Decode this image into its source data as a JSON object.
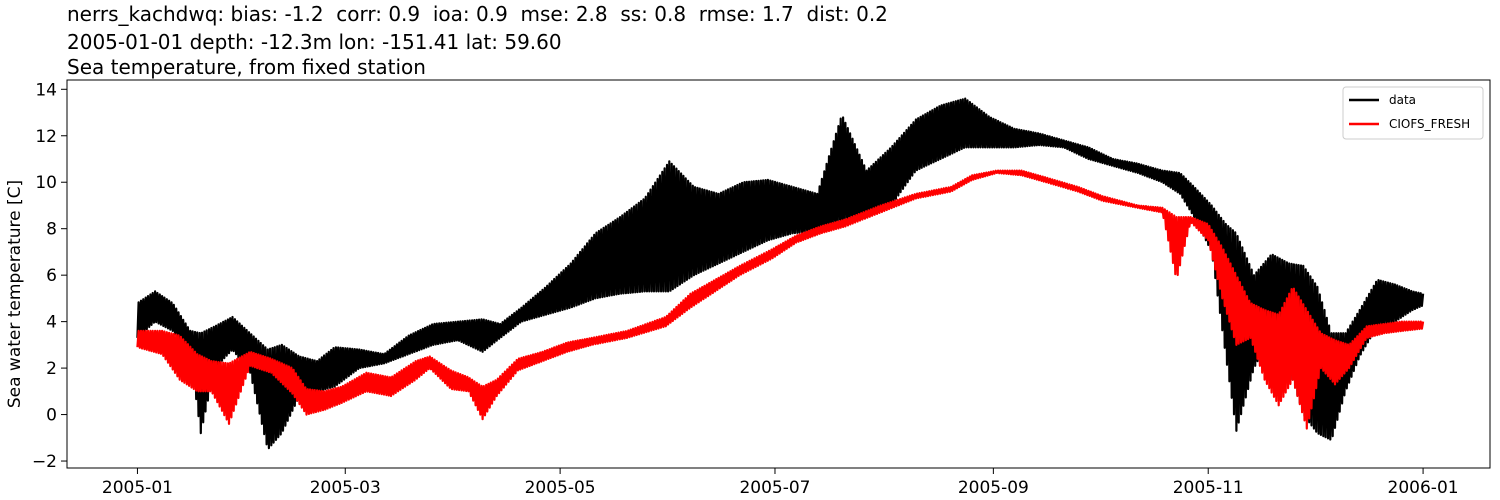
{
  "chart_data": {
    "type": "line",
    "title_lines": [
      "nerrs_kachdwq: bias: -1.2  corr: 0.9  ioa: 0.9  mse: 2.8  ss: 0.8  rmse: 1.7  dist: 0.2",
      "2005-01-01 depth: -12.3m lon: -151.41 lat: 59.60",
      "Sea temperature, from fixed station"
    ],
    "xlabel": "",
    "ylabel": "Sea water temperature [C]",
    "x_ticks": [
      "2005-01",
      "2005-03",
      "2005-05",
      "2005-07",
      "2005-09",
      "2005-11",
      "2006-01"
    ],
    "y_ticks": [
      "−2",
      "0",
      "2",
      "4",
      "6",
      "8",
      "10",
      "12",
      "14"
    ],
    "ylim": [
      -2.3,
      14.4
    ],
    "xlim": [
      "2004-12-12",
      "2006-01-20"
    ],
    "legend_position": "upper right",
    "grid": false,
    "series": [
      {
        "name": "data",
        "color": "#000000",
        "points": [
          [
            "2005-01-01",
            3.3,
            4.8
          ],
          [
            "2005-01-06",
            4.0,
            5.3
          ],
          [
            "2005-01-11",
            3.6,
            4.8
          ],
          [
            "2005-01-16",
            2.5,
            3.6
          ],
          [
            "2005-01-19",
            -0.8,
            3.5
          ],
          [
            "2005-01-23",
            2.0,
            3.8
          ],
          [
            "2005-01-28",
            2.8,
            4.2
          ],
          [
            "2005-02-02",
            1.8,
            3.5
          ],
          [
            "2005-02-07",
            -1.5,
            2.8
          ],
          [
            "2005-02-11",
            -0.8,
            3.0
          ],
          [
            "2005-02-16",
            0.8,
            2.5
          ],
          [
            "2005-02-21",
            1.0,
            2.3
          ],
          [
            "2005-02-26",
            1.2,
            2.9
          ],
          [
            "2005-03-05",
            2.0,
            2.8
          ],
          [
            "2005-03-12",
            2.2,
            2.6
          ],
          [
            "2005-03-19",
            2.6,
            3.4
          ],
          [
            "2005-03-26",
            3.0,
            3.9
          ],
          [
            "2005-04-02",
            3.2,
            4.0
          ],
          [
            "2005-04-09",
            2.7,
            4.1
          ],
          [
            "2005-04-14",
            3.3,
            3.9
          ],
          [
            "2005-04-20",
            4.0,
            4.6
          ],
          [
            "2005-04-27",
            4.3,
            5.5
          ],
          [
            "2005-05-04",
            4.6,
            6.5
          ],
          [
            "2005-05-11",
            5.0,
            7.8
          ],
          [
            "2005-05-18",
            5.2,
            8.5
          ],
          [
            "2005-05-25",
            5.3,
            9.3
          ],
          [
            "2005-06-01",
            5.3,
            10.9
          ],
          [
            "2005-06-08",
            6.0,
            9.8
          ],
          [
            "2005-06-15",
            6.5,
            9.5
          ],
          [
            "2005-06-22",
            7.0,
            10.0
          ],
          [
            "2005-06-29",
            7.5,
            10.1
          ],
          [
            "2005-07-06",
            7.8,
            9.8
          ],
          [
            "2005-07-13",
            7.9,
            9.5
          ],
          [
            "2005-07-20",
            8.2,
            12.9
          ],
          [
            "2005-07-27",
            8.5,
            10.5
          ],
          [
            "2005-08-03",
            9.0,
            11.5
          ],
          [
            "2005-08-10",
            10.5,
            12.7
          ],
          [
            "2005-08-17",
            11.0,
            13.3
          ],
          [
            "2005-08-24",
            11.5,
            13.6
          ],
          [
            "2005-08-31",
            11.5,
            12.8
          ],
          [
            "2005-09-07",
            11.5,
            12.3
          ],
          [
            "2005-09-14",
            11.6,
            12.1
          ],
          [
            "2005-09-21",
            11.5,
            11.8
          ],
          [
            "2005-09-28",
            11.0,
            11.5
          ],
          [
            "2005-10-05",
            10.7,
            11.0
          ],
          [
            "2005-10-12",
            10.4,
            10.8
          ],
          [
            "2005-10-19",
            10.0,
            10.5
          ],
          [
            "2005-10-24",
            9.5,
            10.4
          ],
          [
            "2005-10-28",
            8.5,
            9.8
          ],
          [
            "2005-11-02",
            7.0,
            9.0
          ],
          [
            "2005-11-06",
            2.5,
            8.2
          ],
          [
            "2005-11-09",
            -0.7,
            7.8
          ],
          [
            "2005-11-14",
            2.0,
            6.0
          ],
          [
            "2005-11-19",
            3.5,
            6.9
          ],
          [
            "2005-11-24",
            2.0,
            6.5
          ],
          [
            "2005-11-28",
            0.0,
            6.4
          ],
          [
            "2005-12-02",
            -0.8,
            5.5
          ],
          [
            "2005-12-06",
            -1.1,
            3.5
          ],
          [
            "2005-12-10",
            1.0,
            3.5
          ],
          [
            "2005-12-14",
            2.5,
            4.5
          ],
          [
            "2005-12-19",
            3.8,
            5.8
          ],
          [
            "2005-12-24",
            4.0,
            5.6
          ],
          [
            "2005-12-29",
            4.5,
            5.3
          ],
          [
            "2006-01-01",
            4.7,
            5.2
          ]
        ]
      },
      {
        "name": "CIOFS_FRESH",
        "color": "#ff0000",
        "points": [
          [
            "2005-01-01",
            2.9,
            3.6
          ],
          [
            "2005-01-08",
            2.6,
            3.6
          ],
          [
            "2005-01-13",
            1.5,
            3.4
          ],
          [
            "2005-01-18",
            1.0,
            2.6
          ],
          [
            "2005-01-22",
            1.0,
            2.3
          ],
          [
            "2005-01-27",
            -0.4,
            2.2
          ],
          [
            "2005-02-02",
            2.1,
            2.7
          ],
          [
            "2005-02-08",
            1.8,
            2.4
          ],
          [
            "2005-02-14",
            0.9,
            2.0
          ],
          [
            "2005-02-18",
            0.0,
            1.1
          ],
          [
            "2005-02-23",
            0.2,
            1.0
          ],
          [
            "2005-02-28",
            0.5,
            1.2
          ],
          [
            "2005-03-07",
            1.0,
            1.8
          ],
          [
            "2005-03-14",
            0.8,
            1.6
          ],
          [
            "2005-03-21",
            1.5,
            2.3
          ],
          [
            "2005-03-25",
            2.0,
            2.5
          ],
          [
            "2005-03-31",
            1.1,
            1.9
          ],
          [
            "2005-04-05",
            1.0,
            1.6
          ],
          [
            "2005-04-09",
            -0.2,
            1.2
          ],
          [
            "2005-04-13",
            0.8,
            1.5
          ],
          [
            "2005-04-19",
            1.9,
            2.4
          ],
          [
            "2005-04-26",
            2.3,
            2.7
          ],
          [
            "2005-05-03",
            2.7,
            3.1
          ],
          [
            "2005-05-10",
            3.0,
            3.3
          ],
          [
            "2005-05-20",
            3.3,
            3.6
          ],
          [
            "2005-05-31",
            3.8,
            4.2
          ],
          [
            "2005-06-07",
            4.6,
            5.2
          ],
          [
            "2005-06-14",
            5.3,
            5.8
          ],
          [
            "2005-06-21",
            6.0,
            6.4
          ],
          [
            "2005-06-30",
            6.7,
            7.1
          ],
          [
            "2005-07-07",
            7.4,
            7.7
          ],
          [
            "2005-07-14",
            7.8,
            8.1
          ],
          [
            "2005-07-21",
            8.1,
            8.4
          ],
          [
            "2005-07-31",
            8.7,
            9.0
          ],
          [
            "2005-08-10",
            9.3,
            9.5
          ],
          [
            "2005-08-20",
            9.6,
            9.8
          ],
          [
            "2005-08-26",
            10.1,
            10.3
          ],
          [
            "2005-09-02",
            10.4,
            10.5
          ],
          [
            "2005-09-09",
            10.3,
            10.5
          ],
          [
            "2005-09-16",
            10.0,
            10.2
          ],
          [
            "2005-09-25",
            9.6,
            9.8
          ],
          [
            "2005-10-02",
            9.2,
            9.4
          ],
          [
            "2005-10-12",
            8.9,
            9.0
          ],
          [
            "2005-10-19",
            8.7,
            8.9
          ],
          [
            "2005-10-23",
            5.8,
            8.5
          ],
          [
            "2005-10-27",
            8.3,
            8.5
          ],
          [
            "2005-11-01",
            7.5,
            8.2
          ],
          [
            "2005-11-05",
            5.0,
            7.2
          ],
          [
            "2005-11-09",
            3.0,
            6.0
          ],
          [
            "2005-11-13",
            3.3,
            4.8
          ],
          [
            "2005-11-17",
            1.5,
            4.5
          ],
          [
            "2005-11-21",
            0.4,
            4.3
          ],
          [
            "2005-11-25",
            1.5,
            5.5
          ],
          [
            "2005-11-29",
            -0.6,
            4.5
          ],
          [
            "2005-12-03",
            2.0,
            3.5
          ],
          [
            "2005-12-07",
            1.3,
            3.2
          ],
          [
            "2005-12-11",
            2.0,
            3.0
          ],
          [
            "2005-12-16",
            3.3,
            3.8
          ],
          [
            "2005-12-21",
            3.5,
            3.9
          ],
          [
            "2005-12-26",
            3.6,
            4.0
          ],
          [
            "2006-01-01",
            3.7,
            4.0
          ]
        ]
      }
    ]
  }
}
